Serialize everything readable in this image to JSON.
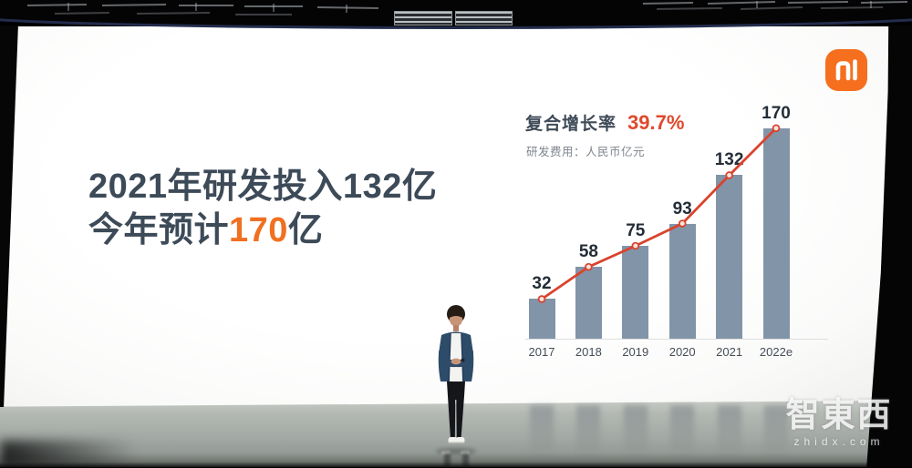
{
  "stage": {
    "watermark_brand": "智東西",
    "watermark_domain": "zhidx.com"
  },
  "slide": {
    "headline_line1": "2021年研发投入132亿",
    "headline_line2": {
      "prefix": "今年预计",
      "highlight": "170",
      "suffix": "亿"
    },
    "logo_label": "mi"
  },
  "chart_data": {
    "type": "bar",
    "title": "复合增长率 39.7%",
    "legend": {
      "label": "复合增长率",
      "value": "39.7%"
    },
    "subtitle": "研发费用：人民币亿元",
    "categories": [
      "2017",
      "2018",
      "2019",
      "2020",
      "2021",
      "2022e"
    ],
    "values": [
      32,
      58,
      75,
      93,
      132,
      170
    ],
    "series": [
      {
        "name": "研发费用",
        "values": [
          32,
          58,
          75,
          93,
          132,
          170
        ]
      }
    ],
    "unit": "人民币亿元",
    "ylim": [
      0,
      180
    ],
    "grid": false,
    "legend_position": "top-left",
    "line_overlay": true,
    "bar_color": "#8294a8",
    "line_color": "#d9432d",
    "marker_fill": "#f7e4dc",
    "value_label_color": "#242d37"
  },
  "colors": {
    "accent_orange": "#f07021",
    "logo_orange": "#f56f1e",
    "headline_text": "#3d4a58",
    "screen_white": "#fcfcfb"
  }
}
